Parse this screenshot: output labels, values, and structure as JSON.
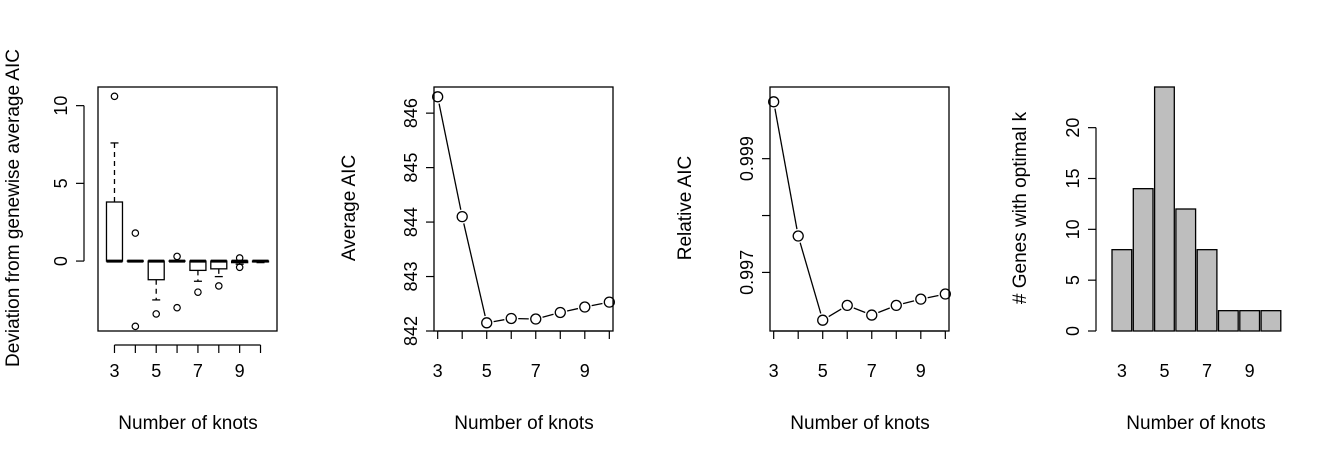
{
  "chart_data": [
    {
      "type": "box",
      "xlabel": "Number of knots",
      "ylabel": "Deviation from genewise average AIC",
      "x_tick_labels": [
        "3",
        "5",
        "7",
        "9"
      ],
      "y_tick_labels": [
        "0",
        "5",
        "10"
      ],
      "x": [
        3,
        4,
        5,
        6,
        7,
        8,
        9,
        10
      ],
      "ylim": [
        -4.5,
        11.2
      ],
      "boxes": [
        {
          "x": 3,
          "whisker_low": 0,
          "q1": 0,
          "median": 0,
          "q3": 3.8,
          "whisker_high": 7.6,
          "outliers": [
            10.6
          ]
        },
        {
          "x": 4,
          "whisker_low": 0,
          "q1": 0,
          "median": 0,
          "q3": 0,
          "whisker_high": 0,
          "outliers": [
            1.8,
            -4.2
          ]
        },
        {
          "x": 5,
          "whisker_low": -2.5,
          "q1": -1.2,
          "median": 0,
          "q3": 0,
          "whisker_high": 0,
          "outliers": [
            -3.4
          ]
        },
        {
          "x": 6,
          "whisker_low": 0,
          "q1": 0,
          "median": 0,
          "q3": 0,
          "whisker_high": 0,
          "outliers": [
            0.3,
            -3.0
          ]
        },
        {
          "x": 7,
          "whisker_low": -1.3,
          "q1": -0.6,
          "median": 0,
          "q3": 0,
          "whisker_high": 0,
          "outliers": [
            -2.0
          ]
        },
        {
          "x": 8,
          "whisker_low": -1.0,
          "q1": -0.5,
          "median": 0,
          "q3": 0,
          "whisker_high": 0,
          "outliers": [
            -1.6
          ]
        },
        {
          "x": 9,
          "whisker_low": -0.2,
          "q1": -0.1,
          "median": 0,
          "q3": 0,
          "whisker_high": 0,
          "outliers": [
            0.2,
            -0.4
          ]
        },
        {
          "x": 10,
          "whisker_low": -0.1,
          "q1": -0.05,
          "median": 0,
          "q3": 0,
          "whisker_high": 0,
          "outliers": []
        }
      ]
    },
    {
      "type": "line",
      "xlabel": "Number of knots",
      "ylabel": "Average AIC",
      "x_tick_labels": [
        "3",
        "5",
        "7",
        "9"
      ],
      "y_tick_labels": [
        "842",
        "843",
        "844",
        "845",
        "846"
      ],
      "x": [
        3,
        4,
        5,
        6,
        7,
        8,
        9,
        10
      ],
      "values": [
        846.3,
        844.1,
        842.15,
        842.23,
        842.22,
        842.34,
        842.44,
        842.53
      ],
      "xlim": [
        2.85,
        10.15
      ],
      "ylim": [
        842.0,
        846.48
      ]
    },
    {
      "type": "line",
      "xlabel": "Number of knots",
      "ylabel": "Relative AIC",
      "x_tick_labels": [
        "3",
        "5",
        "7",
        "9"
      ],
      "y_tick_labels": [
        "0.997",
        "0.999"
      ],
      "x": [
        3,
        4,
        5,
        6,
        7,
        8,
        9,
        10
      ],
      "values": [
        1.0,
        0.99764,
        0.99616,
        0.99642,
        0.99625,
        0.99642,
        0.99653,
        0.99662
      ],
      "xlim": [
        2.85,
        10.15
      ],
      "ylim": [
        0.99597,
        1.00026
      ]
    },
    {
      "type": "bar",
      "xlabel": "Number of knots",
      "ylabel": "# Genes with optimal k",
      "categories": [
        "3",
        "4",
        "5",
        "6",
        "7",
        "8",
        "9",
        "10"
      ],
      "x_tick_labels": [
        "3",
        "5",
        "7",
        "9"
      ],
      "y_tick_labels": [
        "0",
        "5",
        "10",
        "15",
        "20"
      ],
      "values": [
        8,
        14,
        24,
        12,
        8,
        2,
        2,
        2
      ],
      "ylim": [
        0,
        24
      ]
    }
  ]
}
